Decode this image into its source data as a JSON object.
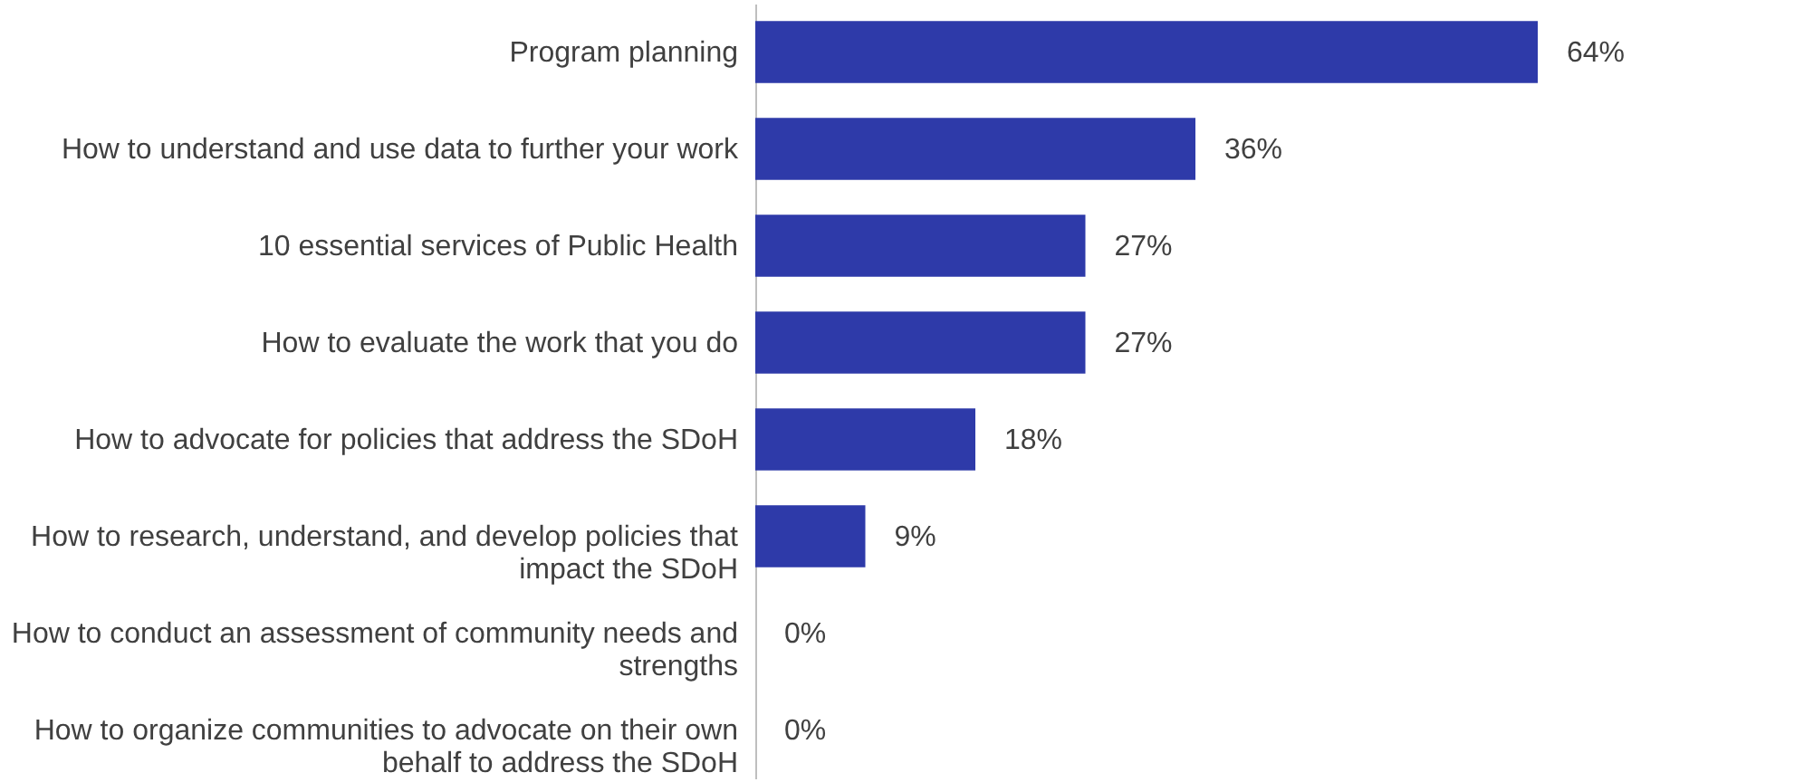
{
  "chart_data": {
    "type": "bar",
    "orientation": "horizontal",
    "categories": [
      "Program planning",
      "How to understand and use data to further your work",
      "10 essential services of Public Health",
      "How to evaluate the work that you do",
      "How to advocate for policies that address the SDoH",
      "How to research, understand, and develop policies that impact the SDoH",
      "How to conduct an assessment of community needs and strengths",
      "How to organize communities to advocate on their own behalf to address the SDoH"
    ],
    "values": [
      64,
      36,
      27,
      27,
      18,
      9,
      0,
      0
    ],
    "value_labels": [
      "64%",
      "36%",
      "27%",
      "27%",
      "18%",
      "9%",
      "0%",
      "0%"
    ],
    "color": "#2e3aa9"
  }
}
